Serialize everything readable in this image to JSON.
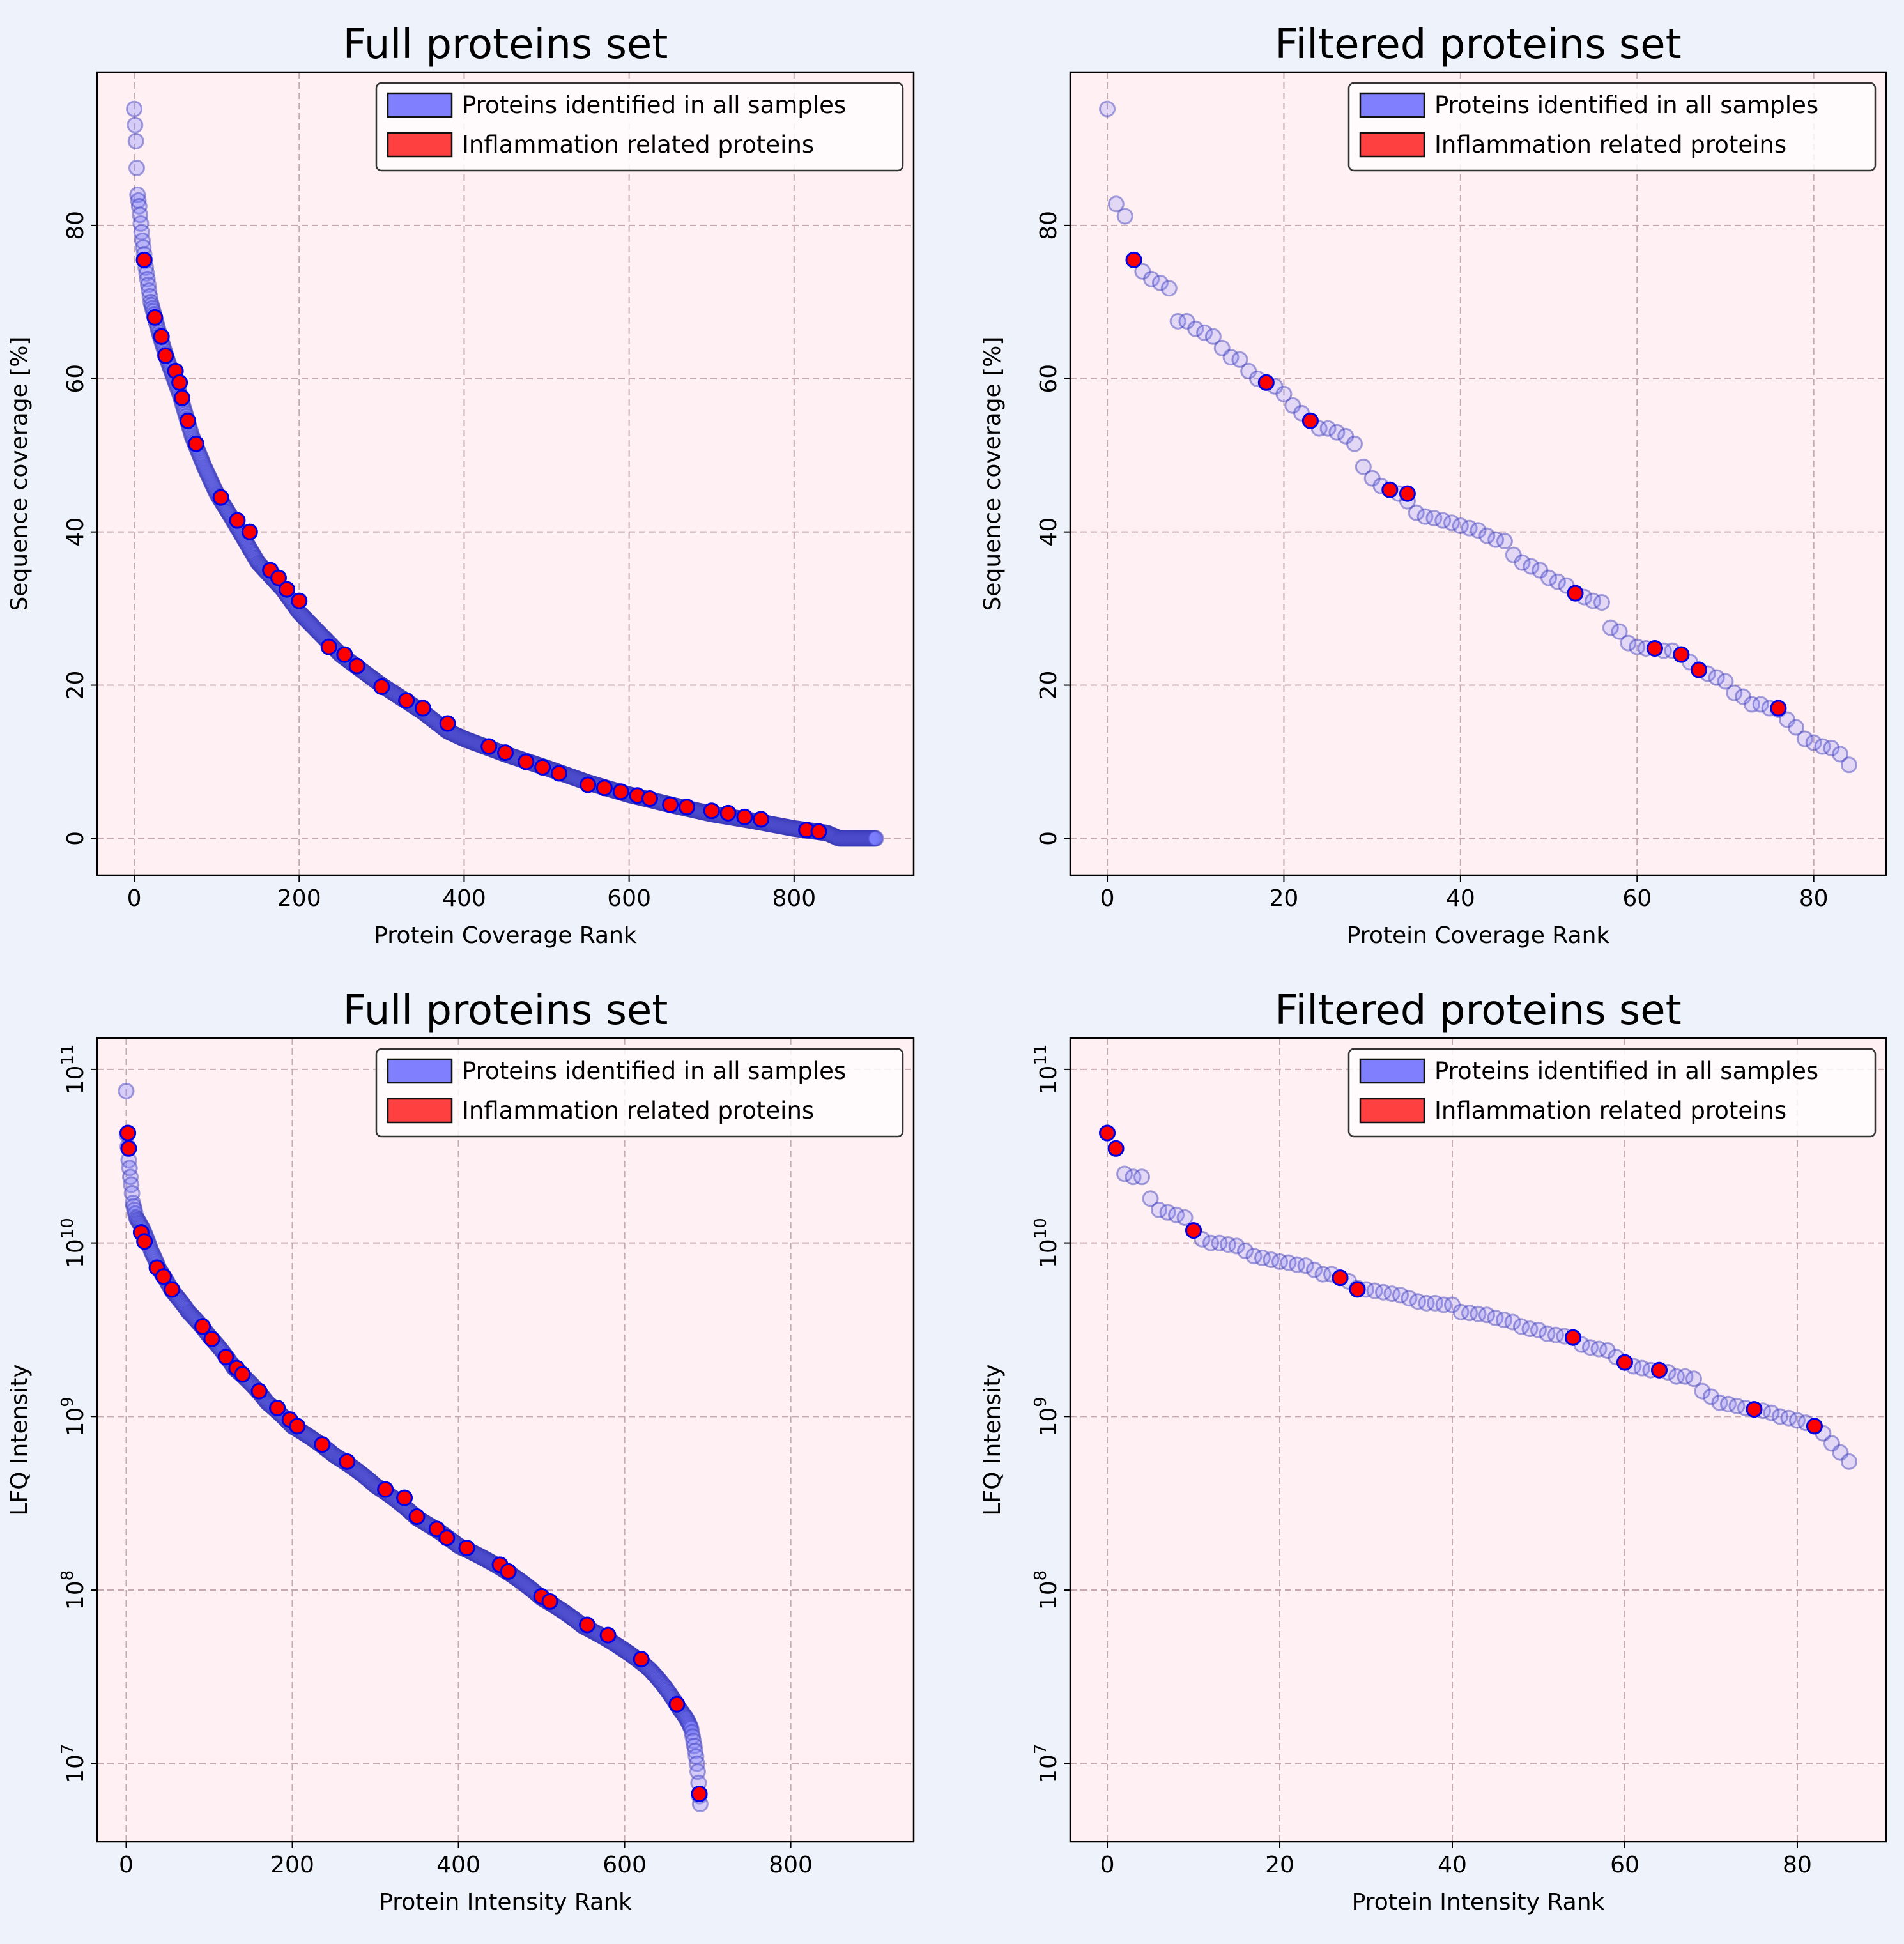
{
  "colors": {
    "figure_bg": "#eef2fa",
    "axes_bg": "#fff0f3",
    "grid": "#c4aab0",
    "all_fill": "#7d7fff",
    "all_edge": "#3a3ab8",
    "inflam_fill": "#ff0000",
    "inflam_edge": "#0000e6",
    "legend_all": "#8080ff",
    "legend_inflam": "#ff4040"
  },
  "chart_data": [
    {
      "type": "scatter",
      "title": "Full proteins set",
      "xlabel": "Protein Coverage Rank",
      "ylabel": "Sequence coverage [%]",
      "yscale": "linear",
      "xlim": [
        -45,
        945
      ],
      "ylim": [
        -4.8,
        100
      ],
      "xticks": [
        0,
        200,
        400,
        600,
        800
      ],
      "yticks": [
        0,
        20,
        40,
        60,
        80
      ],
      "grid": true,
      "legend_position": "top-right",
      "legend": [
        "Proteins identified in all samples",
        "Inflammation related proteins"
      ],
      "series": [
        {
          "name": "Proteins identified in all samples",
          "curve": "coverage-rank",
          "n": 900,
          "x": [
            0,
            2,
            4,
            6,
            10,
            14,
            20,
            30,
            40,
            55,
            70,
            85,
            100,
            120,
            150,
            180,
            200,
            250,
            300,
            350,
            380,
            400,
            450,
            500,
            550,
            600,
            650,
            700,
            750,
            800,
            840,
            855,
            900
          ],
          "y": [
            95.2,
            91,
            84,
            82.5,
            78,
            74.5,
            70,
            66,
            62.5,
            58,
            52.5,
            48.5,
            45,
            41.5,
            36,
            32.5,
            29.5,
            24,
            20,
            16.5,
            14,
            13,
            11,
            9.2,
            7.3,
            5.7,
            4.4,
            3.2,
            2.3,
            1.3,
            0.7,
            0,
            0
          ]
        },
        {
          "name": "Inflammation related proteins",
          "x": [
            12,
            25,
            33,
            38,
            50,
            55,
            58,
            65,
            75,
            105,
            125,
            140,
            165,
            175,
            185,
            200,
            236,
            255,
            270,
            300,
            330,
            350,
            380,
            430,
            450,
            475,
            495,
            515,
            550,
            570,
            590,
            610,
            625,
            650,
            670,
            700,
            720,
            740,
            760,
            815,
            830
          ],
          "y": [
            75.5,
            68,
            65.5,
            63,
            61,
            59.5,
            57.5,
            54.5,
            51.5,
            44.5,
            41.5,
            40,
            35,
            34,
            32.5,
            31,
            25,
            24,
            22.5,
            19.8,
            18,
            17,
            15,
            12,
            11.2,
            10,
            9.3,
            8.5,
            7,
            6.6,
            6.1,
            5.6,
            5.2,
            4.4,
            4.1,
            3.6,
            3.3,
            2.8,
            2.5,
            1.1,
            0.9
          ]
        }
      ]
    },
    {
      "type": "scatter",
      "title": "Filtered proteins set",
      "xlabel": "Protein Coverage Rank",
      "ylabel": "Sequence coverage [%]",
      "yscale": "linear",
      "xlim": [
        -4.2,
        88.2
      ],
      "ylim": [
        -4.8,
        100
      ],
      "xticks": [
        0,
        20,
        40,
        60,
        80
      ],
      "yticks": [
        0,
        20,
        40,
        60,
        80
      ],
      "grid": true,
      "legend_position": "top-right",
      "legend": [
        "Proteins identified in all samples",
        "Inflammation related proteins"
      ],
      "series": [
        {
          "name": "Proteins identified in all samples",
          "x": [
            0,
            1,
            2,
            3,
            4,
            5,
            6,
            7,
            8,
            9,
            10,
            11,
            12,
            13,
            14,
            15,
            16,
            17,
            18,
            19,
            20,
            21,
            22,
            23,
            24,
            25,
            26,
            27,
            28,
            29,
            30,
            31,
            32,
            33,
            34,
            35,
            36,
            37,
            38,
            39,
            40,
            41,
            42,
            43,
            44,
            45,
            46,
            47,
            48,
            49,
            50,
            51,
            52,
            53,
            54,
            55,
            56,
            57,
            58,
            59,
            60,
            61,
            62,
            63,
            64,
            65,
            66,
            67,
            68,
            69,
            70,
            71,
            72,
            73,
            74,
            75,
            76,
            77,
            78,
            79,
            80,
            81,
            82,
            83,
            84
          ],
          "y": [
            95.2,
            82.8,
            81.2,
            75.5,
            74,
            73,
            72.5,
            71.8,
            67.5,
            67.5,
            66.5,
            66,
            65.5,
            64,
            62.8,
            62.5,
            61,
            60,
            59.5,
            59,
            58,
            56.5,
            55.5,
            54.5,
            53.5,
            53.5,
            53,
            52.5,
            51.5,
            48.5,
            47,
            46,
            45.5,
            45,
            44,
            42.5,
            42,
            41.8,
            41.5,
            41.2,
            40.8,
            40.5,
            40.2,
            39.5,
            39,
            38.8,
            37,
            36,
            35.5,
            35,
            34,
            33.5,
            33,
            32,
            31.5,
            31,
            30.8,
            27.5,
            27,
            25.5,
            25,
            24.8,
            24.8,
            24.5,
            24.5,
            24,
            23,
            22,
            21.5,
            21,
            20.5,
            19,
            18.5,
            17.5,
            17.5,
            17,
            16.8,
            15.5,
            14.5,
            13,
            12.5,
            12,
            11.8,
            11,
            9.6
          ]
        },
        {
          "name": "Inflammation related proteins",
          "x": [
            3,
            18,
            23,
            32,
            34,
            53,
            62,
            65,
            67,
            76
          ],
          "y": [
            75.5,
            59.5,
            54.5,
            45.5,
            45,
            32,
            24.8,
            24,
            22,
            17
          ]
        }
      ]
    },
    {
      "type": "scatter",
      "title": "Full proteins set",
      "xlabel": "Protein Intensity Rank",
      "ylabel": "LFQ Intensity",
      "yscale": "log",
      "xlim": [
        -35,
        948
      ],
      "ylim_log10": [
        6.55,
        11.18
      ],
      "xticks": [
        0,
        200,
        400,
        600,
        800
      ],
      "yticks_exp": [
        7,
        8,
        9,
        10,
        11
      ],
      "grid": true,
      "legend_position": "top-right",
      "legend": [
        "Proteins identified in all samples",
        "Inflammation related proteins"
      ],
      "series": [
        {
          "name": "Proteins identified in all samples",
          "curve": "intensity-rank",
          "n": 692,
          "x": [
            0,
            1,
            3,
            5,
            8,
            12,
            20,
            30,
            40,
            55,
            75,
            100,
            130,
            170,
            200,
            250,
            300,
            350,
            400,
            450,
            500,
            550,
            600,
            630,
            650,
            665,
            675,
            680,
            683,
            686,
            688,
            690,
            692
          ],
          "y": [
            "7.5e10",
            "4.2e10",
            "3e10",
            "2.4e10",
            "1.7e10",
            "1.4e10",
            "1.2e10",
            "9e9",
            "7e9",
            "5.3e9",
            "4e9",
            "2.9e9",
            "1.9e9",
            "1.2e9",
            "8.8e8",
            "6e8",
            "4e8",
            "2.6e8",
            "1.8e8",
            "1.35e8",
            "9e7",
            "6.2e7",
            "4.5e7",
            "3.5e7",
            "2.7e7",
            "2.1e7",
            "1.8e7",
            "1.6e7",
            "1.35e7",
            "1.1e7",
            "9e6",
            "6.5e6",
            "5.2e6"
          ]
        },
        {
          "name": "Inflammation related proteins",
          "x": [
            2,
            3,
            18,
            22,
            37,
            45,
            55,
            92,
            103,
            120,
            133,
            140,
            160,
            182,
            197,
            206,
            236,
            266,
            312,
            335,
            350,
            374,
            386,
            410,
            450,
            460,
            500,
            510,
            555,
            580,
            620,
            663,
            690
          ],
          "y": [
            "4.3e10",
            "3.5e10",
            "1.15e10",
            "1.02e10",
            "7.2e9",
            "6.4e9",
            "5.4e9",
            "3.3e9",
            "2.8e9",
            "2.2e9",
            "1.9e9",
            "1.75e9",
            "1.4e9",
            "1.12e9",
            "9.6e8",
            "8.8e8",
            "6.9e8",
            "5.5e8",
            "3.8e8",
            "3.4e8",
            "2.65e8",
            "2.25e8",
            "2e8",
            "1.75e8",
            "1.4e8",
            "1.28e8",
            "9.2e7",
            "8.6e7",
            "6.3e7",
            "5.5e7",
            "4e7",
            "2.2e7",
            "6.7e6"
          ]
        }
      ]
    },
    {
      "type": "scatter",
      "title": "Filtered proteins set",
      "xlabel": "Protein Intensity Rank",
      "ylabel": "LFQ Intensity",
      "yscale": "log",
      "xlim": [
        -4.3,
        90.3
      ],
      "ylim_log10": [
        6.55,
        11.18
      ],
      "xticks": [
        0,
        20,
        40,
        60,
        80
      ],
      "yticks_exp": [
        7,
        8,
        9,
        10,
        11
      ],
      "grid": true,
      "legend_position": "top-right",
      "legend": [
        "Proteins identified in all samples",
        "Inflammation related proteins"
      ],
      "series": [
        {
          "name": "Proteins identified in all samples",
          "x": [
            0,
            1,
            2,
            3,
            4,
            5,
            6,
            7,
            8,
            9,
            10,
            11,
            12,
            13,
            14,
            15,
            16,
            17,
            18,
            19,
            20,
            21,
            22,
            23,
            24,
            25,
            26,
            27,
            28,
            29,
            30,
            31,
            32,
            33,
            34,
            35,
            36,
            37,
            38,
            39,
            40,
            41,
            42,
            43,
            44,
            45,
            46,
            47,
            48,
            49,
            50,
            51,
            52,
            53,
            54,
            55,
            56,
            57,
            58,
            59,
            60,
            61,
            62,
            63,
            64,
            65,
            66,
            67,
            68,
            69,
            70,
            71,
            72,
            73,
            74,
            75,
            76,
            77,
            78,
            79,
            80,
            81,
            82,
            83,
            84,
            85,
            86
          ],
          "y": [
            "4.3e10",
            "3.5e10",
            "2.5e10",
            "2.4e10",
            "2.4e10",
            "1.8e10",
            "1.55e10",
            "1.5e10",
            "1.45e10",
            "1.4e10",
            "1.18e10",
            "1.05e10",
            "1.0e10",
            "1.0e10",
            "9.8e9",
            "9.6e9",
            "9.0e9",
            "8.4e9",
            "8.2e9",
            "8.0e9",
            "7.8e9",
            "7.7e9",
            "7.5e9",
            "7.4e9",
            "7.0e9",
            "6.6e9",
            "6.6e9",
            "6.3e9",
            "6.0e9",
            "5.5e9",
            "5.4e9",
            "5.3e9",
            "5.2e9",
            "5.1e9",
            "5.0e9",
            "4.8e9",
            "4.6e9",
            "4.5e9",
            "4.5e9",
            "4.4e9",
            "4.4e9",
            "4.0e9",
            "3.95e9",
            "3.9e9",
            "3.85e9",
            "3.7e9",
            "3.6e9",
            "3.5e9",
            "3.3e9",
            "3.2e9",
            "3.15e9",
            "3.0e9",
            "2.95e9",
            "2.9e9",
            "2.85e9",
            "2.6e9",
            "2.5e9",
            "2.45e9",
            "2.4e9",
            "2.2e9",
            "2.05e9",
            "1.95e9",
            "1.9e9",
            "1.85e9",
            "1.85e9",
            "1.8e9",
            "1.7e9",
            "1.7e9",
            "1.65e9",
            "1.4e9",
            "1.3e9",
            "1.2e9",
            "1.18e9",
            "1.15e9",
            "1.12e9",
            "1.1e9",
            "1.08e9",
            "1.05e9",
            "1.0e9",
            "9.8e8",
            "9.5e8",
            "9.2e8",
            "8.8e8",
            "8.0e8",
            "7.0e8",
            "6.2e8",
            "5.5e8"
          ]
        },
        {
          "name": "Inflammation related proteins",
          "x": [
            0,
            1,
            10,
            27,
            29,
            54,
            60,
            64,
            75,
            82
          ],
          "y": [
            "4.3e10",
            "3.5e10",
            "1.18e10",
            "6.3e9",
            "5.4e9",
            "2.85e9",
            "2.05e9",
            "1.85e9",
            "1.1e9",
            "8.8e8"
          ]
        }
      ]
    }
  ]
}
